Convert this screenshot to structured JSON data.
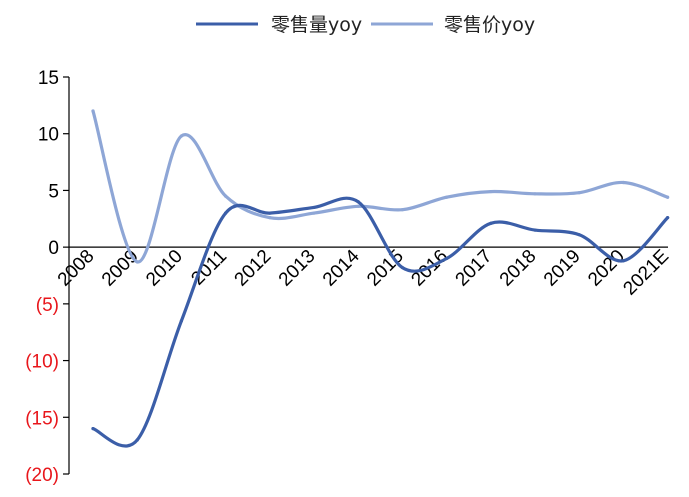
{
  "chart_data": {
    "type": "line",
    "title": "",
    "xlabel": "",
    "ylabel": "",
    "categories": [
      "2008",
      "2009",
      "2010",
      "2011",
      "2012",
      "2013",
      "2014",
      "2015",
      "2016",
      "2017",
      "2018",
      "2019",
      "2020",
      "2021E"
    ],
    "ylim": [
      -20,
      15
    ],
    "yticks": [
      {
        "value": 15,
        "label": "15"
      },
      {
        "value": 10,
        "label": "10"
      },
      {
        "value": 5,
        "label": "5"
      },
      {
        "value": 0,
        "label": "0"
      },
      {
        "value": -5,
        "label": "(5)"
      },
      {
        "value": -10,
        "label": "(10)"
      },
      {
        "value": -15,
        "label": "(15)"
      },
      {
        "value": -20,
        "label": "(20)"
      }
    ],
    "negative_label_color": "#e8161b",
    "positive_label_color": "#000000",
    "legend_position": "top-center",
    "grid": false,
    "series": [
      {
        "name": "零售量yoy",
        "color": "#3b5ea8",
        "values": [
          -16.0,
          -17.0,
          -6.5,
          3.0,
          3.0,
          3.5,
          4.0,
          -1.8,
          -1.0,
          2.1,
          1.5,
          1.1,
          -1.2,
          2.6
        ]
      },
      {
        "name": "零售价yoy",
        "color": "#8ea6d6",
        "values": [
          12.0,
          -1.3,
          9.8,
          4.5,
          2.6,
          3.0,
          3.6,
          3.3,
          4.4,
          4.9,
          4.7,
          4.8,
          5.7,
          4.4
        ]
      }
    ]
  }
}
